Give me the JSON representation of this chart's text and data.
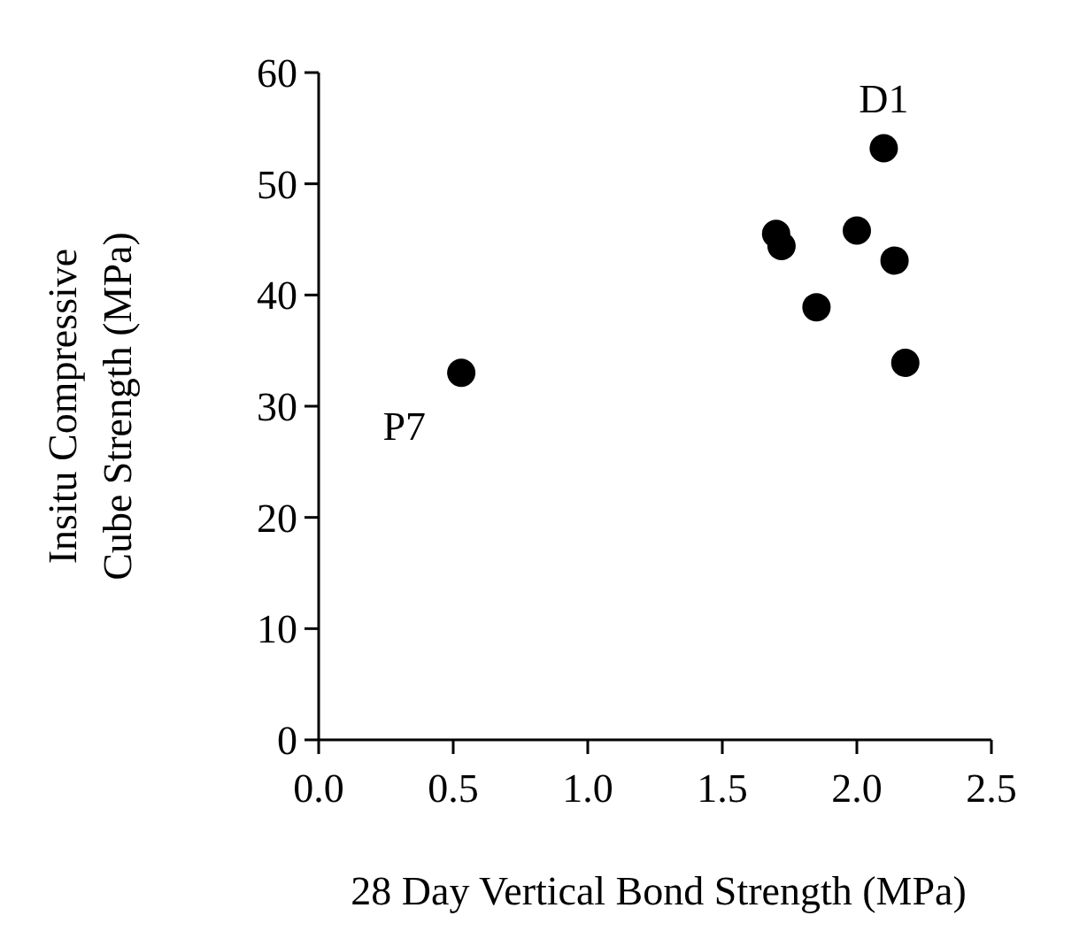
{
  "chart_data": {
    "type": "scatter",
    "xlabel": "28 Day Vertical Bond Strength (MPa)",
    "ylabel": "Insitu Compressive\nCube Strength (MPa)",
    "x": [
      2.1,
      1.7,
      1.72,
      2.0,
      2.14,
      1.85,
      2.18,
      0.53
    ],
    "values": [
      53.2,
      45.5,
      44.4,
      45.8,
      43.1,
      38.9,
      33.9,
      33.0
    ],
    "color": "#000000",
    "marker": "circle",
    "xlim": [
      0,
      2.5
    ],
    "xticks": [
      {
        "value": 0,
        "label": "0.0"
      },
      {
        "value": 0.5,
        "label": "0.5"
      },
      {
        "value": 1,
        "label": "1.0"
      },
      {
        "value": 1.5,
        "label": "1.5"
      },
      {
        "value": 2,
        "label": "2.0"
      },
      {
        "value": 2.5,
        "label": "2.5"
      }
    ],
    "ylim": [
      0,
      60
    ],
    "yticks": [
      0,
      10,
      20,
      30,
      40,
      50,
      60
    ],
    "annotations": [
      {
        "text": "D1",
        "x": 2.1,
        "y": 53.2
      },
      {
        "text": "P7",
        "x": 0.53,
        "y": 33.0
      }
    ]
  }
}
